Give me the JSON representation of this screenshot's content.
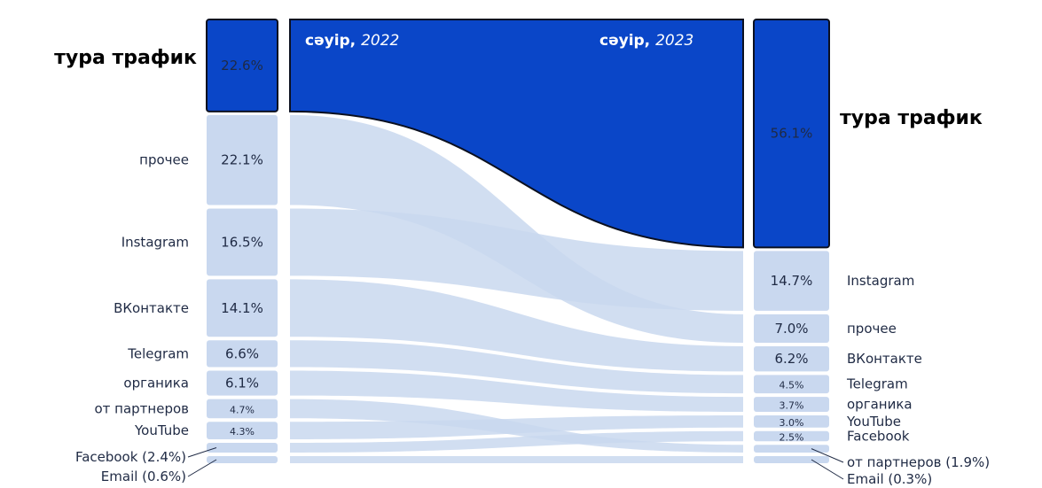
{
  "chart_data": {
    "type": "sankey",
    "left_period": {
      "label": "сәуір,",
      "year": "2022"
    },
    "right_period": {
      "label": "сәуір,",
      "year": "2023"
    },
    "colors": {
      "highlight": "#0a46c8",
      "flow": "#c9d8ef",
      "flow_strong": "#b7cbe9",
      "text": "#1f2a44"
    },
    "left_nodes": [
      {
        "key": "direct",
        "label": "тура трафик",
        "value_text": "22.6%",
        "value": 22.6
      },
      {
        "key": "other",
        "label": "прочее",
        "value_text": "22.1%",
        "value": 22.1
      },
      {
        "key": "instagram",
        "label": "Instagram",
        "value_text": "16.5%",
        "value": 16.5
      },
      {
        "key": "vk",
        "label": "ВКонтакте",
        "value_text": "14.1%",
        "value": 14.1
      },
      {
        "key": "telegram",
        "label": "Telegram",
        "value_text": "6.6%",
        "value": 6.6
      },
      {
        "key": "organic",
        "label": "органика",
        "value_text": "6.1%",
        "value": 6.1
      },
      {
        "key": "partners",
        "label": "от партнеров",
        "value_text": "4.7%",
        "value": 4.7
      },
      {
        "key": "youtube",
        "label": "YouTube",
        "value_text": "4.3%",
        "value": 4.3
      },
      {
        "key": "facebook",
        "label": "Facebook (2.4%)",
        "value_text": "",
        "value": 2.4
      },
      {
        "key": "email",
        "label": "Email (0.6%)",
        "value_text": "",
        "value": 0.6
      }
    ],
    "right_nodes": [
      {
        "key": "direct",
        "label": "тура трафик",
        "value_text": "56.1%",
        "value": 56.1
      },
      {
        "key": "instagram",
        "label": "Instagram",
        "value_text": "14.7%",
        "value": 14.7
      },
      {
        "key": "other",
        "label": "прочее",
        "value_text": "7.0%",
        "value": 7.0
      },
      {
        "key": "vk",
        "label": "ВКонтакте",
        "value_text": "6.2%",
        "value": 6.2
      },
      {
        "key": "telegram",
        "label": "Telegram",
        "value_text": "4.5%",
        "value": 4.5
      },
      {
        "key": "organic",
        "label": "органика",
        "value_text": "3.7%",
        "value": 3.7
      },
      {
        "key": "youtube",
        "label": "YouTube",
        "value_text": "3.0%",
        "value": 3.0
      },
      {
        "key": "facebook",
        "label": "Facebook",
        "value_text": "2.5%",
        "value": 2.5
      },
      {
        "key": "partners",
        "label": "от партнеров (1.9%)",
        "value_text": "",
        "value": 1.9
      },
      {
        "key": "email",
        "label": "Email (0.3%)",
        "value_text": "",
        "value": 0.3
      }
    ]
  }
}
